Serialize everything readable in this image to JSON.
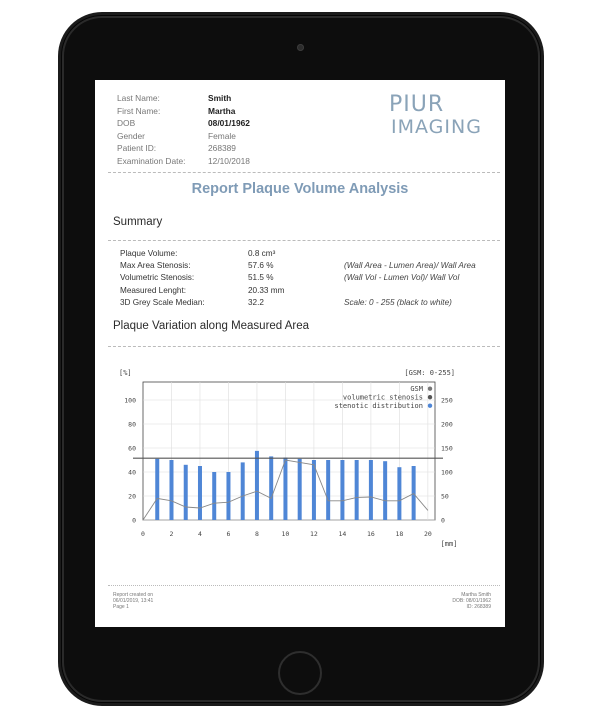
{
  "patient": {
    "rows": [
      {
        "label": "Last Name:",
        "value": "Smith",
        "bold": true
      },
      {
        "label": "First Name:",
        "value": "Martha",
        "bold": true
      },
      {
        "label": "DOB",
        "value": "08/01/1962",
        "bold": true
      },
      {
        "label": "Gender",
        "value": "Female",
        "bold": false
      },
      {
        "label": "Patient ID:",
        "value": "268389",
        "bold": false
      },
      {
        "label": "Examination Date:",
        "value": "12/10/2018",
        "bold": false
      }
    ]
  },
  "logo": {
    "line1": "PIUR",
    "line2": "IMAGING"
  },
  "report": {
    "title": "Report Plaque Volume Analysis"
  },
  "summary": {
    "heading": "Summary",
    "rows": [
      {
        "label": "Plaque Volume:",
        "value": "0.8 cm³",
        "note": ""
      },
      {
        "label": "Max Area Stenosis:",
        "value": "57.6 %",
        "note": "(Wall Area - Lumen Area)/ Wall Area"
      },
      {
        "label": "Volumetric Stenosis:",
        "value": "51.5 %",
        "note": "(Wall Vol - Lumen Vol)/ Wall Vol"
      },
      {
        "label": "Measured Lenght:",
        "value": "20.33 mm",
        "note": ""
      },
      {
        "label": "3D Grey Scale Median:",
        "value": "32.2",
        "note": "Scale: 0 - 255 (black to white)"
      }
    ]
  },
  "variation": {
    "heading": "Plaque Variation along Measured Area"
  },
  "chart_data": {
    "type": "bar",
    "ylabel": "[%]",
    "xlabel": "[mm]",
    "y2label": "[GSM: 0-255]",
    "xlim": [
      0,
      20.5
    ],
    "ylim": [
      0,
      115
    ],
    "y2lim": [
      0,
      287.5
    ],
    "yticks": [
      0,
      20,
      40,
      60,
      80,
      100
    ],
    "y2ticks": [
      0,
      50,
      100,
      150,
      200,
      250
    ],
    "xticks": [
      0,
      2,
      4,
      6,
      8,
      10,
      12,
      14,
      16,
      18,
      20
    ],
    "grid": true,
    "legend_position": "top-right",
    "series": [
      {
        "name": "GSM",
        "kind": "marker",
        "color": "#777777"
      },
      {
        "name": "volumetric stenosis",
        "kind": "hline",
        "value": 51.5,
        "color": "#555555"
      },
      {
        "name": "stenotic distribution",
        "kind": "bar",
        "color": "#4f86d6",
        "x": [
          1,
          2,
          3,
          4,
          5,
          6,
          7,
          8,
          9,
          10,
          11,
          12,
          13,
          14,
          15,
          16,
          17,
          18,
          19
        ],
        "values": [
          51,
          50,
          46,
          45,
          40,
          40,
          48,
          57.6,
          53,
          52,
          51,
          50,
          50,
          50,
          50,
          50,
          49,
          44,
          45
        ]
      }
    ],
    "gsm_line": {
      "x": [
        0,
        1,
        2,
        3,
        4,
        5,
        6,
        7,
        8,
        9,
        10,
        11,
        12,
        13,
        14,
        15,
        16,
        17,
        18,
        19,
        20
      ],
      "values": [
        0,
        45,
        40,
        27,
        25,
        35,
        37,
        50,
        60,
        45,
        125,
        120,
        115,
        40,
        40,
        47,
        48,
        40,
        40,
        55,
        20
      ],
      "color": "#888888"
    }
  },
  "footer": {
    "left": [
      "Report created on",
      "06/01/2019, 13:41",
      "Page 1"
    ],
    "right": [
      "Martha Smith",
      "DOB: 08/01/1962",
      "ID: 268389"
    ]
  }
}
